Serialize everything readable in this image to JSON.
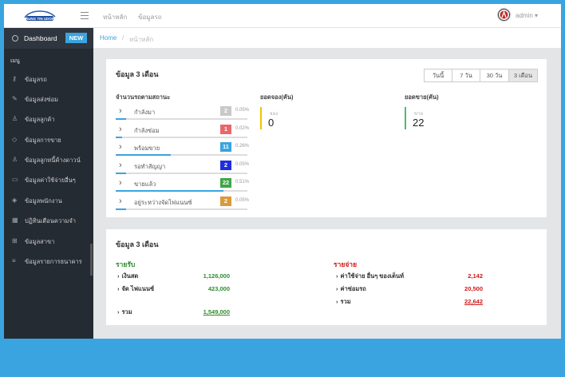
{
  "topbar": {
    "logo_text": "RUNG TIN UDON",
    "nav": [
      "หน้าหลัก",
      "ข้อมูลรถ"
    ],
    "user_name": "admin"
  },
  "sidebar": {
    "dashboard_label": "Dashboard",
    "dashboard_badge": "NEW",
    "menu_title": "เมนู",
    "items": [
      {
        "label": "ข้อมูลรถ",
        "icon": "key-icon"
      },
      {
        "label": "ข้อมูลส่งซ่อม",
        "icon": "wrench-icon"
      },
      {
        "label": "ข้อมูลลูกค้า",
        "icon": "user-icon"
      },
      {
        "label": "ข้อมูลการขาย",
        "icon": "diamond-icon"
      },
      {
        "label": "ข้อมูลลูกหนี้ค้างดาวน์",
        "icon": "user-debt-icon"
      },
      {
        "label": "ข้อมูลค่าใช้จ่ายอื่นๆ",
        "icon": "folder-icon"
      },
      {
        "label": "ข้อมูลพนักงาน",
        "icon": "tag-icon"
      },
      {
        "label": "ปฏิทินเตือนความจำ",
        "icon": "calendar-icon"
      },
      {
        "label": "ข้อมูลสาขา",
        "icon": "grid-icon"
      },
      {
        "label": "ข้อมูลรายการธนาคาร",
        "icon": "list-icon"
      }
    ]
  },
  "breadcrumb": {
    "home": "Home",
    "sep": "/",
    "current": "หน้าหลัก"
  },
  "card1": {
    "title": "ข้อมูล 3 เดือน",
    "tabs": [
      "วันนี้",
      "7 วัน",
      "30 วัน",
      "3 เดือน"
    ],
    "active_tab": 3,
    "status_heading": "จำนวนรถตามสถานะ",
    "status_rows": [
      {
        "name": "กำลังมา",
        "count": "2",
        "pct": "0.05%",
        "color": "#c9c9c9",
        "fill": 0.05
      },
      {
        "name": "กำลังซ่อม",
        "count": "1",
        "pct": "0.02%",
        "color": "#e9676b",
        "fill": 0.02
      },
      {
        "name": "พร้อมขาย",
        "count": "11",
        "pct": "0.26%",
        "color": "#3aa4e0",
        "fill": 0.26
      },
      {
        "name": "รอทำสัญญา",
        "count": "2",
        "pct": "0.05%",
        "color": "#1f2de0",
        "fill": 0.05
      },
      {
        "name": "ขายแล้ว",
        "count": "22",
        "pct": "0.51%",
        "color": "#3ea649",
        "fill": 0.51
      },
      {
        "name": "อยู่ระหว่างจัดไฟแนนซ์",
        "count": "2",
        "pct": "0.05%",
        "color": "#d99a3a",
        "fill": 0.05
      }
    ],
    "booking": {
      "heading": "ยอดจอง(คัน)",
      "sub": "จอง",
      "value": "0",
      "color": "#f2c200"
    },
    "sales": {
      "heading": "ยอดขาย(คัน)",
      "sub": "ขาย",
      "value": "22",
      "color": "#4cbb73"
    }
  },
  "card2": {
    "title": "ข้อมูล 3 เดือน",
    "income": {
      "heading": "รายรับ",
      "rows": [
        {
          "label": "เงินสด",
          "value": "1,126,000"
        },
        {
          "label": "จัด ไฟแนนซ์",
          "value": "423,000"
        },
        {
          "label": "รวม",
          "value": "1,549,000"
        }
      ]
    },
    "expense": {
      "heading": "รายจ่าย",
      "rows": [
        {
          "label": "ค่าใช้จ่าย อื่นๆ ของเต็นท์",
          "value": "2,142"
        },
        {
          "label": "ค่าซ่อมรถ",
          "value": "20,500"
        },
        {
          "label": "รวม",
          "value": "22,642"
        }
      ]
    }
  },
  "colors": {
    "accent": "#3aa4e0",
    "income": "#2e8b2e",
    "expense": "#d01818"
  }
}
